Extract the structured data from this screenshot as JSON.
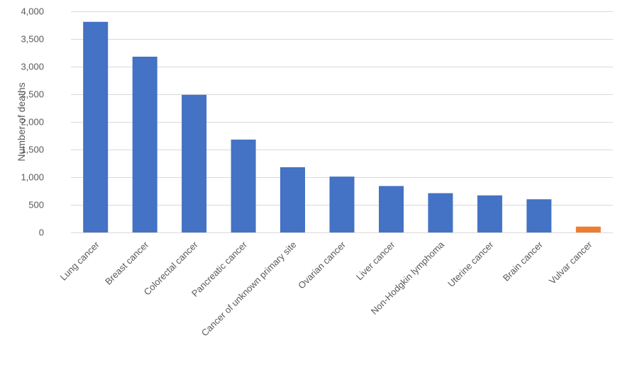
{
  "chart_data": {
    "type": "bar",
    "title": "",
    "xlabel": "",
    "ylabel": "Number of deaths",
    "ylim": [
      0,
      4000
    ],
    "yticks": [
      "0",
      "500",
      "1,000",
      "1,500",
      "2,000",
      "2,500",
      "3,000",
      "3,500",
      "4,000"
    ],
    "ytick_values": [
      0,
      500,
      1000,
      1500,
      2000,
      2500,
      3000,
      3500,
      4000
    ],
    "grid": true,
    "legend": "none",
    "categories": [
      "Lung cancer",
      "Breast cancer",
      "Colorectal cancer",
      "Pancreatic cancer",
      "Cancer of unknown primary site",
      "Ovarian cancer",
      "Liver cancer",
      "Non-Hodgkin lymphoma",
      "Uterine cancer",
      "Brain cancer",
      "Vulvar cancer"
    ],
    "values": [
      3810,
      3180,
      2490,
      1680,
      1180,
      1010,
      840,
      710,
      670,
      600,
      105
    ],
    "colors": [
      "#4472C4",
      "#4472C4",
      "#4472C4",
      "#4472C4",
      "#4472C4",
      "#4472C4",
      "#4472C4",
      "#4472C4",
      "#4472C4",
      "#4472C4",
      "#ED7D31"
    ]
  }
}
